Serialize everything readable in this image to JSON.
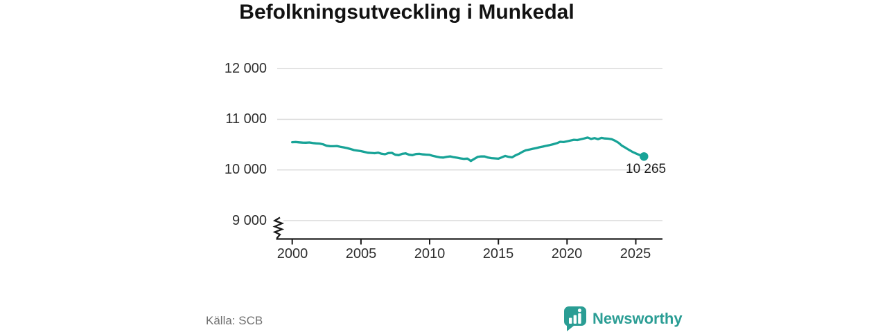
{
  "title": "Befolkningsutveckling i Munkedal",
  "source": "Källa: SCB",
  "branding": {
    "name": "Newsworthy",
    "logo_icon": "bar-chart-speech-bubble-icon",
    "color": "#2a9d94"
  },
  "chart_data": {
    "type": "line",
    "title": "Befolkningsutveckling i Munkedal",
    "xlabel": "",
    "ylabel": "",
    "grid": true,
    "axis_break": true,
    "xlim": [
      1999.6,
      2027
    ],
    "ylim": [
      9000,
      12400
    ],
    "x_ticks": [
      2000,
      2005,
      2010,
      2015,
      2020,
      2025
    ],
    "x_tick_labels": [
      "2000",
      "2005",
      "2010",
      "2015",
      "2020",
      "2025"
    ],
    "y_ticks": [
      12000,
      11000,
      10000,
      9000
    ],
    "y_tick_labels": [
      "12 000",
      "11 000",
      "10 000",
      "9 000"
    ],
    "line_color": "#18a397",
    "grid_color": "#d8d8d8",
    "axis_color": "#1a1a1a",
    "end_label": "10 265",
    "end_value": 10265,
    "series": [
      {
        "name": "Befolkning",
        "x": [
          2000,
          2000.25,
          2000.5,
          2000.75,
          2001,
          2001.25,
          2001.5,
          2001.75,
          2002,
          2002.25,
          2002.5,
          2002.75,
          2003,
          2003.25,
          2003.5,
          2003.75,
          2004,
          2004.25,
          2004.5,
          2004.75,
          2005,
          2005.25,
          2005.5,
          2005.75,
          2006,
          2006.25,
          2006.5,
          2006.75,
          2007,
          2007.25,
          2007.5,
          2007.75,
          2008,
          2008.25,
          2008.5,
          2008.75,
          2009,
          2009.25,
          2009.5,
          2009.75,
          2010,
          2010.25,
          2010.5,
          2010.75,
          2011,
          2011.25,
          2011.5,
          2011.75,
          2012,
          2012.25,
          2012.5,
          2012.75,
          2013,
          2013.25,
          2013.5,
          2013.75,
          2014,
          2014.25,
          2014.5,
          2014.75,
          2015,
          2015.25,
          2015.5,
          2015.75,
          2016,
          2016.25,
          2016.5,
          2016.75,
          2017,
          2017.25,
          2017.5,
          2017.75,
          2018,
          2018.25,
          2018.5,
          2018.75,
          2019,
          2019.25,
          2019.5,
          2019.75,
          2020,
          2020.25,
          2020.5,
          2020.75,
          2021,
          2021.25,
          2021.5,
          2021.75,
          2022,
          2022.25,
          2022.5,
          2022.75,
          2023,
          2023.25,
          2023.5,
          2023.75,
          2024,
          2024.25,
          2024.5,
          2024.75,
          2025,
          2025.3,
          2025.6
        ],
        "values": [
          10548,
          10552,
          10545,
          10540,
          10538,
          10542,
          10532,
          10524,
          10520,
          10505,
          10478,
          10470,
          10468,
          10472,
          10458,
          10445,
          10432,
          10412,
          10392,
          10382,
          10372,
          10356,
          10340,
          10336,
          10330,
          10342,
          10320,
          10310,
          10334,
          10338,
          10300,
          10292,
          10318,
          10328,
          10300,
          10292,
          10314,
          10318,
          10308,
          10302,
          10298,
          10278,
          10262,
          10248,
          10244,
          10258,
          10268,
          10252,
          10242,
          10228,
          10218,
          10224,
          10178,
          10218,
          10258,
          10268,
          10266,
          10244,
          10234,
          10228,
          10222,
          10248,
          10278,
          10258,
          10248,
          10288,
          10318,
          10358,
          10388,
          10402,
          10418,
          10432,
          10448,
          10462,
          10478,
          10492,
          10508,
          10528,
          10556,
          10550,
          10566,
          10580,
          10596,
          10590,
          10606,
          10622,
          10640,
          10612,
          10628,
          10608,
          10632,
          10622,
          10618,
          10608,
          10576,
          10536,
          10478,
          10438,
          10398,
          10358,
          10328,
          10292,
          10265
        ]
      }
    ]
  }
}
